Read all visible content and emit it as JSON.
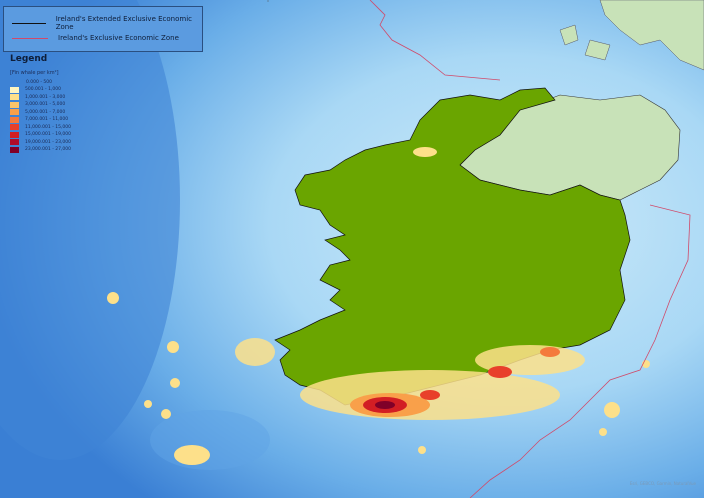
{
  "zones": [
    {
      "label": "Ireland's Extended Exclusive Economic Zone",
      "color": "#111111"
    },
    {
      "label": "Ireland's Exclusive Economic Zone",
      "color": "#d04a6a"
    }
  ],
  "legend": {
    "title": "Legend",
    "unit": "[Fin whale per km²]",
    "first_class": "0.000 - 500",
    "classes": [
      {
        "label": "500.001 - 1,000",
        "color": "#fdf5c0"
      },
      {
        "label": "1,000.001 - 3,000",
        "color": "#fde08a"
      },
      {
        "label": "3,000.001 - 5,000",
        "color": "#fcc46a"
      },
      {
        "label": "5,000.001 - 7,000",
        "color": "#f9a04a"
      },
      {
        "label": "7,000.001 - 11,000",
        "color": "#f47a3c"
      },
      {
        "label": "11,000.001 - 15,000",
        "color": "#e8402a"
      },
      {
        "label": "15,000.001 - 19,000",
        "color": "#d21e24"
      },
      {
        "label": "19,000.001 - 23,000",
        "color": "#b00c2a"
      },
      {
        "label": "23,000.001 - 27,000",
        "color": "#800028"
      }
    ]
  },
  "credit": "Esri, GEBCO, Garmin, NaturalVue",
  "colors": {
    "land_ireland": "#6aa500",
    "land_other": "#c8e2b8",
    "sea_deep": "#3a7fd4",
    "sea_shallow": "#c6e6f8"
  }
}
